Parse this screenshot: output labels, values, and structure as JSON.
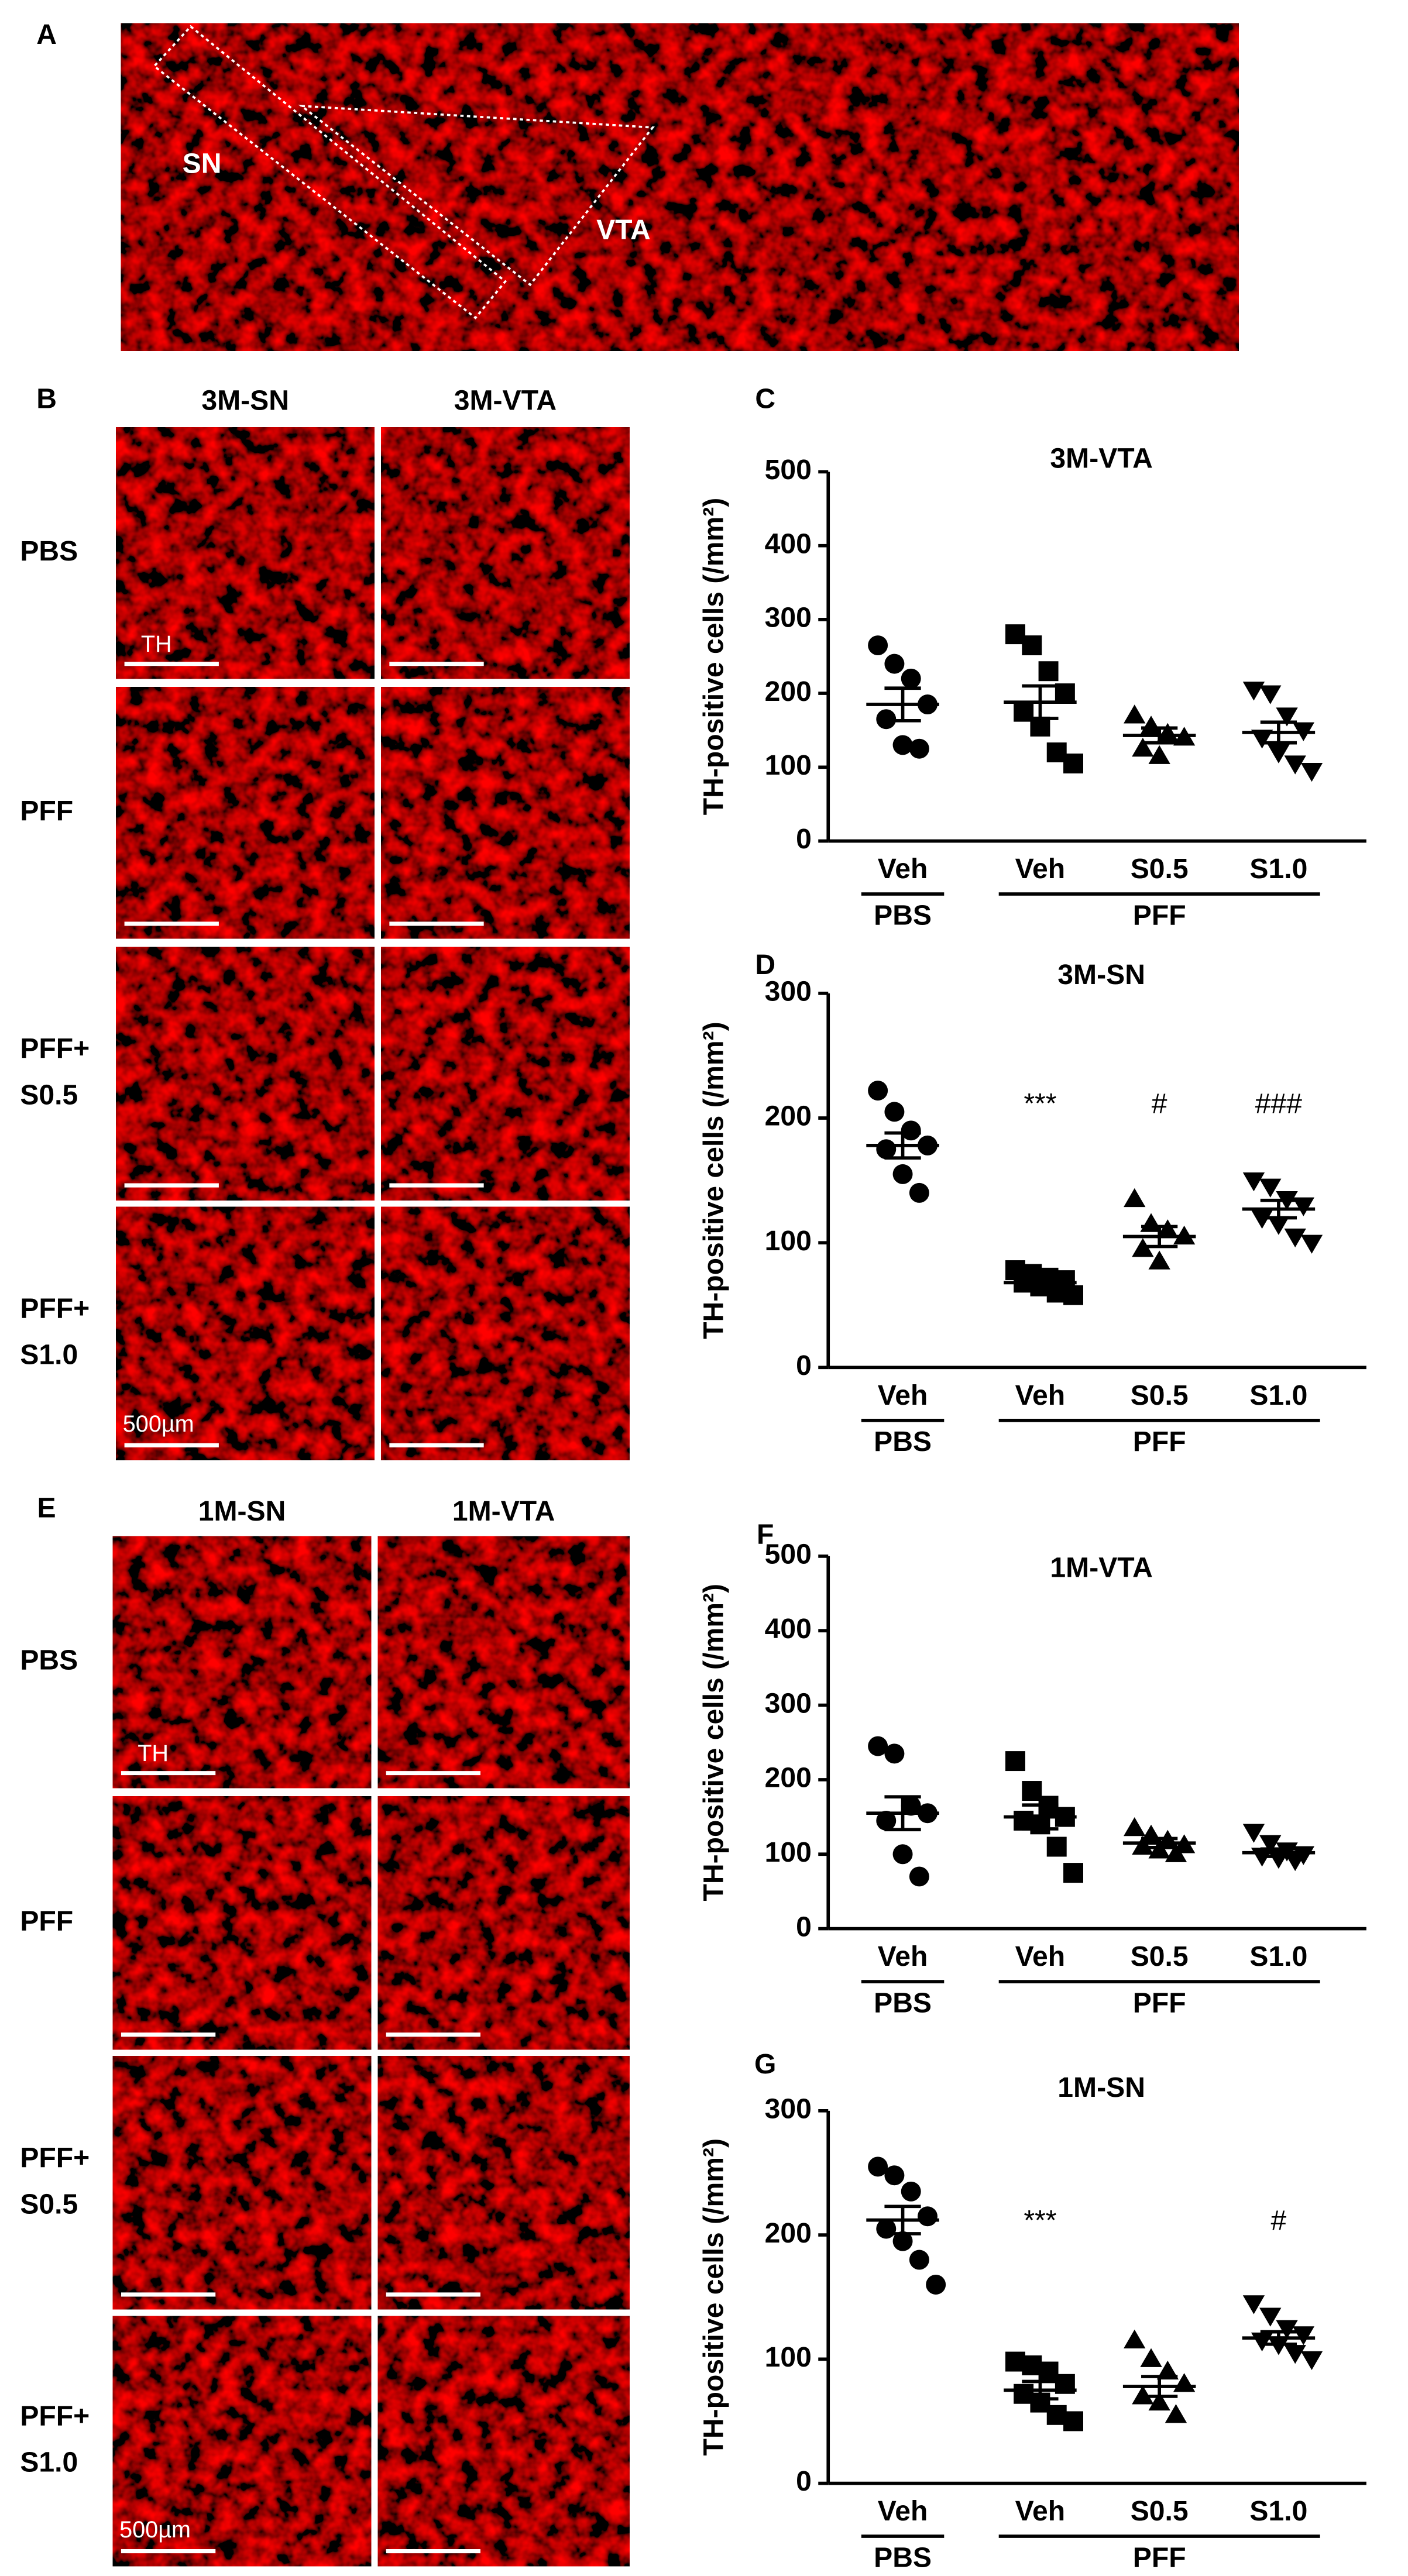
{
  "panel_labels": [
    "A",
    "B",
    "C",
    "D",
    "E",
    "F",
    "G"
  ],
  "panel_a": {
    "labels": [
      "SN",
      "VTA"
    ]
  },
  "panel_b": {
    "columns": [
      "3M-SN",
      "3M-VTA"
    ],
    "rows": [
      [
        "PBS"
      ],
      [
        "PFF"
      ],
      [
        "PFF+",
        "S0.5"
      ],
      [
        "PFF+",
        "S1.0"
      ]
    ],
    "stain": "TH",
    "scale": "500µm"
  },
  "panel_e": {
    "columns": [
      "1M-SN",
      "1M-VTA"
    ],
    "rows": [
      [
        "PBS"
      ],
      [
        "PFF"
      ],
      [
        "PFF+",
        "S0.5"
      ],
      [
        "PFF+",
        "S1.0"
      ]
    ],
    "stain": "TH",
    "scale": "500µm"
  },
  "chart_data": [
    {
      "type": "scatter",
      "title": "3M-VTA",
      "y_label": "TH-positive cells (/mm²)",
      "categories": [
        "Veh",
        "Veh",
        "S0.5",
        "S1.0"
      ],
      "groups": [
        {
          "label": "PBS",
          "categories": [
            0
          ]
        },
        {
          "label": "PFF",
          "categories": [
            1,
            2,
            3
          ]
        }
      ],
      "markers": [
        "circle",
        "square",
        "triangle",
        "triangle-down"
      ],
      "values": [
        [
          265,
          240,
          220,
          185,
          165,
          130,
          125
        ],
        [
          280,
          265,
          230,
          200,
          175,
          155,
          120,
          105
        ],
        [
          170,
          155,
          145,
          140,
          125,
          115
        ],
        [
          205,
          200,
          170,
          150,
          140,
          120,
          105,
          95
        ]
      ],
      "means": [
        185,
        188,
        143,
        147
      ],
      "sems": [
        22,
        22,
        10,
        14
      ],
      "significance": [
        null,
        null,
        null,
        null
      ],
      "ylim": [
        0,
        500
      ],
      "yticks": [
        0,
        100,
        200,
        300,
        400,
        500
      ],
      "color": "#000000"
    },
    {
      "type": "scatter",
      "title": "3M-SN",
      "y_label": "TH-positive cells (/mm²)",
      "categories": [
        "Veh",
        "Veh",
        "S0.5",
        "S1.0"
      ],
      "groups": [
        {
          "label": "PBS",
          "categories": [
            0
          ]
        },
        {
          "label": "PFF",
          "categories": [
            1,
            2,
            3
          ]
        }
      ],
      "markers": [
        "circle",
        "square",
        "triangle",
        "triangle-down"
      ],
      "values": [
        [
          222,
          205,
          190,
          178,
          175,
          155,
          140
        ],
        [
          78,
          75,
          72,
          70,
          68,
          65,
          60,
          58
        ],
        [
          135,
          115,
          110,
          105,
          95,
          85
        ],
        [
          150,
          145,
          135,
          130,
          120,
          115,
          105,
          100
        ]
      ],
      "means": [
        178,
        68,
        105,
        127
      ],
      "sems": [
        10,
        3,
        8,
        7
      ],
      "significance": [
        null,
        "***",
        "#",
        "###"
      ],
      "ylim": [
        0,
        300
      ],
      "yticks": [
        0,
        100,
        200,
        300
      ],
      "color": "#000000"
    },
    {
      "type": "scatter",
      "title": "1M-VTA",
      "y_label": "TH-positive cells (/mm²)",
      "categories": [
        "Veh",
        "Veh",
        "S0.5",
        "S1.0"
      ],
      "groups": [
        {
          "label": "PBS",
          "categories": [
            0
          ]
        },
        {
          "label": "PFF",
          "categories": [
            1,
            2,
            3
          ]
        }
      ],
      "markers": [
        "circle",
        "square",
        "triangle",
        "triangle-down"
      ],
      "values": [
        [
          245,
          235,
          165,
          155,
          145,
          100,
          70
        ],
        [
          225,
          185,
          165,
          150,
          145,
          140,
          110,
          75
        ],
        [
          135,
          125,
          118,
          112,
          110,
          105,
          100
        ],
        [
          130,
          115,
          105,
          100,
          98,
          95,
          92
        ]
      ],
      "means": [
        155,
        150,
        115,
        102
      ],
      "sems": [
        22,
        16,
        6,
        5
      ],
      "significance": [
        null,
        null,
        null,
        null
      ],
      "ylim": [
        0,
        500
      ],
      "yticks": [
        0,
        100,
        200,
        300,
        400,
        500
      ],
      "color": "#000000"
    },
    {
      "type": "scatter",
      "title": "1M-SN",
      "y_label": "TH-positive cells (/mm²)",
      "categories": [
        "Veh",
        "Veh",
        "S0.5",
        "S1.0"
      ],
      "groups": [
        {
          "label": "PBS",
          "categories": [
            0
          ]
        },
        {
          "label": "PFF",
          "categories": [
            1,
            2,
            3
          ]
        }
      ],
      "markers": [
        "circle",
        "square",
        "triangle",
        "triangle-down"
      ],
      "values": [
        [
          255,
          248,
          235,
          215,
          205,
          195,
          180,
          160
        ],
        [
          98,
          95,
          90,
          80,
          72,
          65,
          55,
          50
        ],
        [
          115,
          100,
          90,
          80,
          70,
          65,
          55
        ],
        [
          145,
          135,
          125,
          120,
          115,
          112,
          105,
          100
        ]
      ],
      "means": [
        212,
        75,
        78,
        117
      ],
      "sems": [
        11,
        7,
        8,
        5
      ],
      "significance": [
        null,
        "***",
        null,
        "#"
      ],
      "ylim": [
        0,
        300
      ],
      "yticks": [
        0,
        100,
        200,
        300
      ],
      "color": "#000000"
    }
  ]
}
